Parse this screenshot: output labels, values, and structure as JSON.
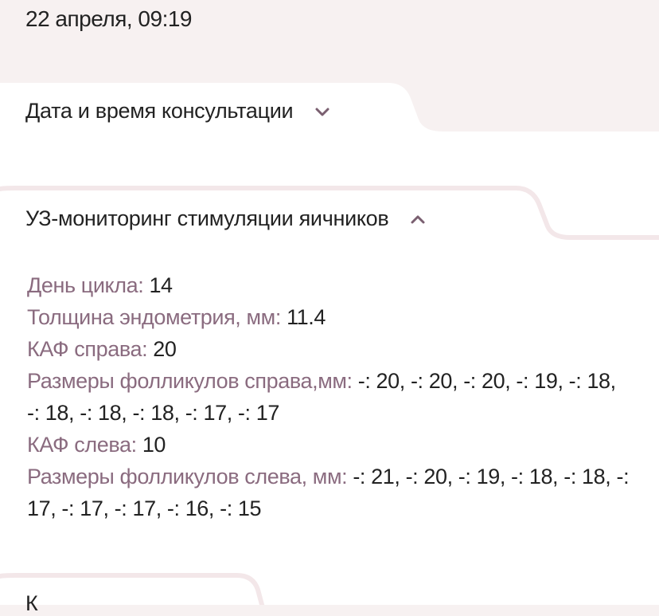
{
  "top": {
    "datetime": "22 апреля, 09:19"
  },
  "sections": [
    {
      "title": "Дата и время консультации",
      "expanded": false,
      "icon": "chevron-down-icon"
    },
    {
      "title": "УЗ-мониторинг стимуляции яичников",
      "expanded": true,
      "icon": "chevron-up-icon",
      "fields": [
        {
          "label": "День цикла:",
          "value": "14"
        },
        {
          "label": "Толщина эндометрия, мм:",
          "value": "11.4"
        },
        {
          "label": "КАФ справа:",
          "value": "20"
        },
        {
          "label": "Размеры фолликулов справа,мм:",
          "value": "-: 20, -: 20, -: 20, -: 19, -: 18, -: 18, -: 18, -: 18, -: 17, -: 17"
        },
        {
          "label": "КАФ слева:",
          "value": "10"
        },
        {
          "label": "Размеры фолликулов слева, мм:",
          "value": "-: 21, -: 20, -: 19, -: 18, -: 18, -: 17, -: 17, -: 17, -: 16, -: 15"
        }
      ]
    },
    {
      "title": "К"
    }
  ],
  "colors": {
    "background": "#f7f1f1",
    "label": "#8a6b7f",
    "chevron": "#7a5f70",
    "card_border": "#f3e7e9"
  }
}
